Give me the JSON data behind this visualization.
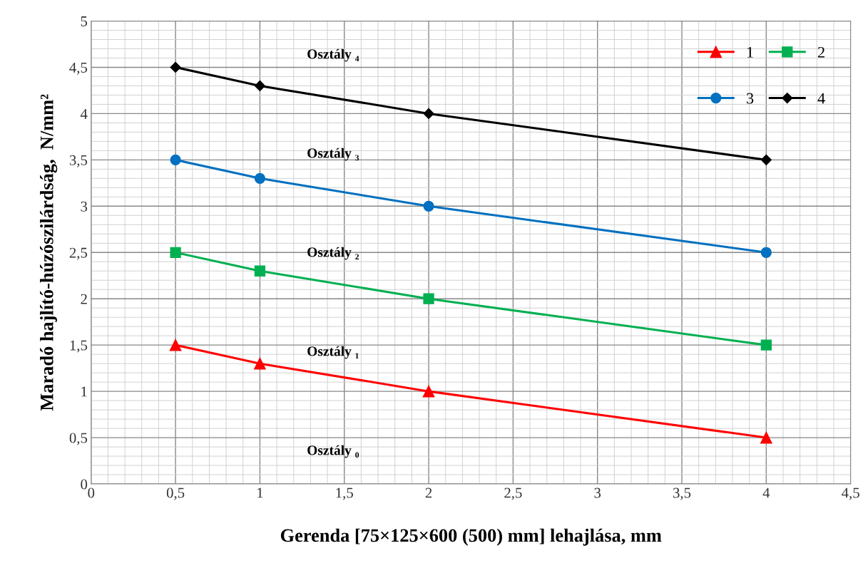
{
  "chart_data": {
    "type": "line",
    "xlabel": "Gerenda [75×125×600 (500) mm] lehajlása, mm",
    "ylabel": "Maradó hajlító-húzószilárdság,  N/mm²",
    "x": [
      0.5,
      1,
      2,
      4
    ],
    "series": [
      {
        "name": "1",
        "color": "#ff0000",
        "marker": "triangle",
        "values": [
          1.5,
          1.3,
          1.0,
          0.5
        ]
      },
      {
        "name": "2",
        "color": "#00b050",
        "marker": "square",
        "values": [
          2.5,
          2.3,
          2.0,
          1.5
        ]
      },
      {
        "name": "3",
        "color": "#0070c0",
        "marker": "circle",
        "values": [
          3.5,
          3.3,
          3.0,
          2.5
        ]
      },
      {
        "name": "4",
        "color": "#000000",
        "marker": "diamond",
        "values": [
          4.5,
          4.3,
          4.0,
          3.5
        ]
      }
    ],
    "annotations": [
      "Osztály ₄",
      "Osztály ₃",
      "Osztály ₂",
      "Osztály ₁",
      "Osztály ₀"
    ],
    "xlim": [
      0,
      4.5
    ],
    "xticks": [
      0,
      {
        "value": 0.5,
        "label": "0,5"
      },
      1,
      {
        "value": 1.5,
        "label": "1,5"
      },
      2,
      {
        "value": 2.5,
        "label": "2,5"
      },
      3,
      {
        "value": 3.5,
        "label": "3,5"
      },
      4,
      {
        "value": 4.5,
        "label": "4,5"
      }
    ],
    "ylim": [
      0,
      5
    ],
    "yticks": [
      0,
      {
        "value": 0.5,
        "label": "0,5"
      },
      1,
      {
        "value": 1.5,
        "label": "1,5"
      },
      2,
      {
        "value": 2.5,
        "label": "2,5"
      },
      3,
      {
        "value": 3.5,
        "label": "3,5"
      },
      4,
      {
        "value": 4.5,
        "label": "4,5"
      },
      5
    ],
    "grid": true,
    "legend": "top right",
    "line_style": "solid"
  }
}
